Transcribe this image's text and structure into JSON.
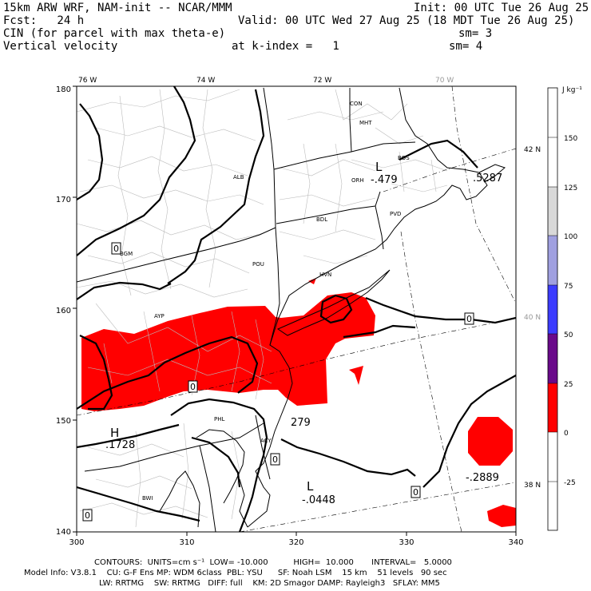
{
  "header": {
    "left": [
      "15km ARW WRF, NAM-init -- NCAR/MMM",
      "Fcst:   24 h",
      "CIN (for parcel with max theta-e)",
      "Vertical velocity"
    ],
    "init": "Init: 00 UTC Tue 26 Aug 25",
    "valid": "Valid: 00 UTC Wed 27 Aug 25 (18 MDT Tue 26 Aug 25)",
    "sm1": "sm= 3",
    "kindex": "at k-index =   1",
    "sm2": "sm= 4"
  },
  "axes": {
    "x_ticks": [
      "300",
      "310",
      "320",
      "330",
      "340"
    ],
    "y_ticks": [
      "180",
      "170",
      "160",
      "150",
      "140"
    ],
    "lon_labels": [
      "76 W",
      "74 W",
      "72 W",
      "70 W"
    ],
    "lat_labels": [
      "42 N",
      "40 N",
      "38 N"
    ]
  },
  "colorbar": {
    "unit": "J kg⁻¹",
    "ticks": [
      "150",
      "125",
      "100",
      "75",
      "50",
      "25",
      "0",
      "-25"
    ],
    "colors": [
      "#ffffff",
      "#ffffff",
      "#d8d8d8",
      "#a0a0e0",
      "#3c3cff",
      "#6a0a8a",
      "#ff0000",
      "#ffffff",
      "#ffffff"
    ]
  },
  "cities": [
    "CON",
    "MHT",
    "BOS",
    "ORH",
    "PVD",
    "ALB",
    "BDL",
    "POU",
    "HVN",
    "BGM",
    "AYP",
    "PHL",
    "ACY",
    "BWI"
  ],
  "extrema": [
    {
      "letter": "L",
      "value": "-.479"
    },
    {
      "letter": "",
      "value": ".5287"
    },
    {
      "letter": "H",
      "value": ".1728"
    },
    {
      "letter": "",
      "value": "279"
    },
    {
      "letter": "L",
      "value": "-.0448"
    },
    {
      "letter": "",
      "value": "-.2889"
    }
  ],
  "zero_label": "0",
  "footer": {
    "line1": "CONTOURS:  UNITS=cm s⁻¹  LOW= -10.000          HIGH=  10.000       INTERVAL=   5.0000",
    "line2": "Model Info: V3.8.1    CU: G-F Ens MP: WDM 6class  PBL: YSU      SF: Noah LSM    15 km    51 levels   90 sec",
    "line3": "LW: RRTMG    SW: RRTMG   DIFF: full    KM: 2D Smagor DAMP: Rayleigh3   SFLAY: MM5"
  }
}
